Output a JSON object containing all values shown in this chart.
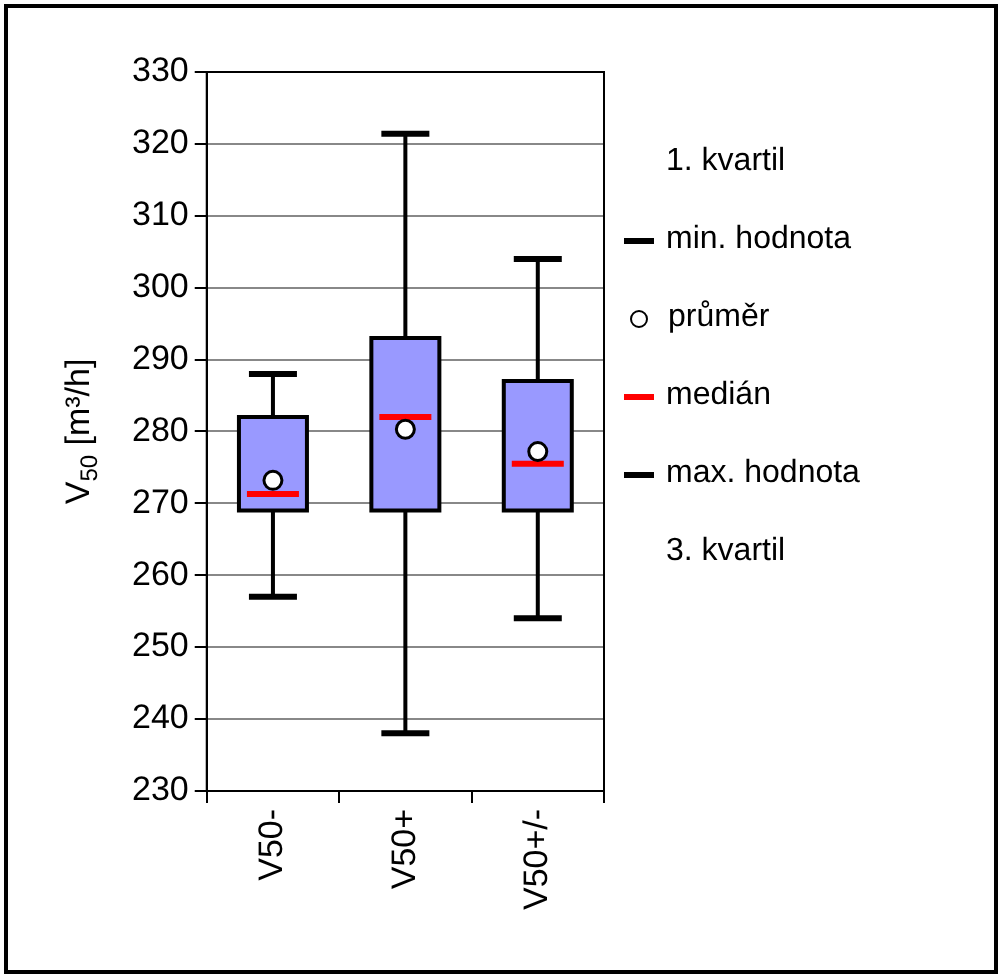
{
  "chart_data": {
    "type": "box",
    "ylabel": "V$_{50}$ [m³/h]",
    "categories": [
      "V50-",
      "V50+",
      "V50+/-"
    ],
    "series": [
      {
        "color": "#9999ff",
        "boxes": [
          {
            "low": 257,
            "q1": 269,
            "median": 271.3,
            "q3": 282,
            "high": 288,
            "mean": 273.2
          },
          {
            "low": 238,
            "q1": 269,
            "median": 282,
            "q3": 293,
            "high": 321.4,
            "mean": 280.3
          },
          {
            "low": 254,
            "q1": 269,
            "median": 275.5,
            "q3": 287,
            "high": 304,
            "mean": 277.2
          }
        ]
      }
    ],
    "ylim": [
      230,
      330
    ],
    "yticks": [
      230,
      240,
      250,
      260,
      270,
      280,
      290,
      300,
      310,
      320,
      330
    ],
    "grid": "y",
    "annotations": [
      "1. kvartil",
      "min. hodnota",
      "průměr",
      "medián",
      "max. hodnota",
      "3. kvartil"
    ]
  }
}
